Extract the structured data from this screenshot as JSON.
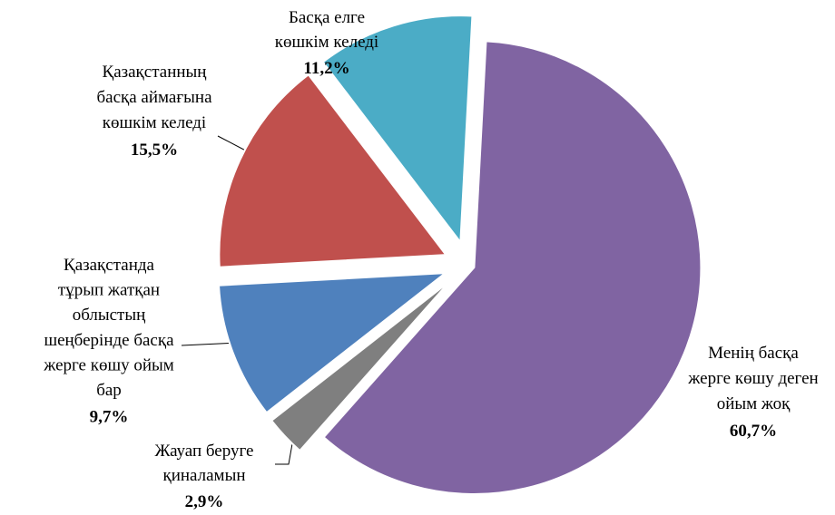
{
  "chart_data": {
    "type": "pie",
    "categories": [
      "Менің басқа\nжерге көшу деген\nойым жоқ",
      "Жауап беруге\nқиналамын",
      "Қазақстанда\nтұрып жатқан\nоблыстың\nшеңберінде басқа\nжерге көшу ойым\nбар",
      "Қазақстанның\nбасқа аймағына\nкөшкім келеді",
      "Басқа елге\nкөшкім келеді"
    ],
    "values": [
      60.7,
      2.9,
      9.7,
      15.5,
      11.2
    ],
    "value_labels": [
      "60,7%",
      "2,9%",
      "9,7%",
      "15,5%",
      "11,2%"
    ],
    "colors": [
      "#8064a2",
      "#7f7f7f",
      "#4f81bd",
      "#c0504d",
      "#4bacc6"
    ]
  }
}
